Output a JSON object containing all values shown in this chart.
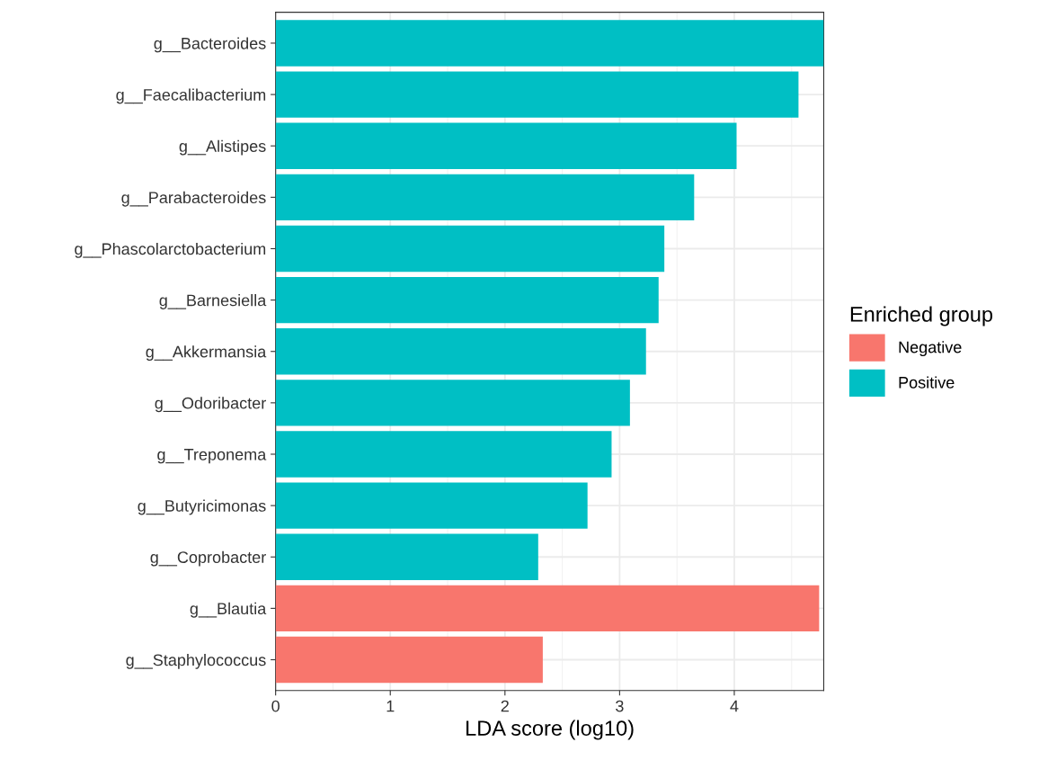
{
  "chart_data": {
    "type": "bar",
    "orientation": "horizontal",
    "xlabel": "LDA score (log10)",
    "legend_title": "Enriched group",
    "legend": "right",
    "categories": [
      "g__Bacteroides",
      "g__Faecalibacterium",
      "g__Alistipes",
      "g__Parabacteroides",
      "g__Phascolarctobacterium",
      "g__Barnesiella",
      "g__Akkermansia",
      "g__Odoribacter",
      "g__Treponema",
      "g__Butyricimonas",
      "g__Coprobacter",
      "g__Blautia",
      "g__Staphylococcus"
    ],
    "series": [
      {
        "name": "Negative",
        "color": "#f8766d",
        "values": [
          null,
          null,
          null,
          null,
          null,
          null,
          null,
          null,
          null,
          null,
          null,
          4.74,
          2.33
        ]
      },
      {
        "name": "Positive",
        "color": "#00bfc4",
        "values": [
          4.78,
          4.56,
          4.02,
          3.65,
          3.39,
          3.34,
          3.23,
          3.09,
          2.93,
          2.72,
          2.29,
          null,
          null
        ]
      }
    ],
    "xlim": [
      0,
      4.78
    ],
    "xticks": [
      0,
      1,
      2,
      3,
      4
    ],
    "grid": true
  }
}
